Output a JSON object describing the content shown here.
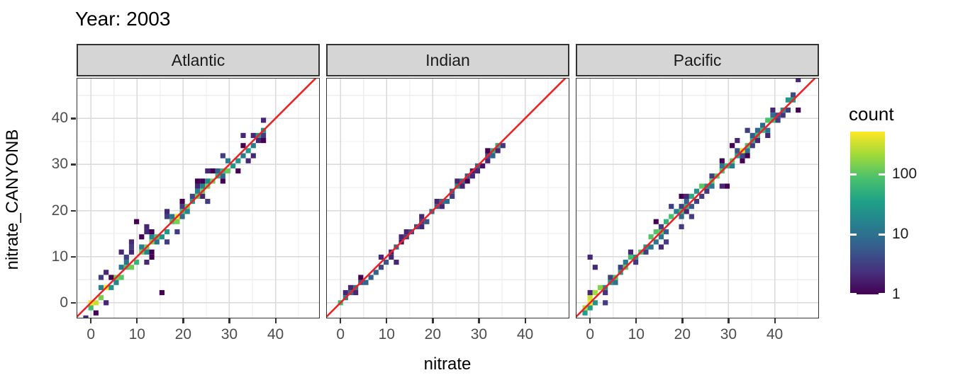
{
  "chart_data": {
    "type": "bin2d",
    "title": "Year: 2003",
    "xlabel": "nitrate",
    "ylabel": "nitrate_CANYONB",
    "x_ticks": [
      0,
      10,
      20,
      30,
      40
    ],
    "y_ticks": [
      0,
      10,
      20,
      30,
      40
    ],
    "minor_gridlines": [
      5,
      15,
      25,
      35,
      45
    ],
    "x_range": [
      -3.1,
      49.6
    ],
    "y_range": [
      -3.4,
      48.8
    ],
    "binwidth": 1.1,
    "grid": true,
    "reference_line": {
      "type": "identity y=x",
      "color": "#EC2227"
    },
    "legend": {
      "title": "count",
      "scale": "log10",
      "ticks": [
        100,
        10,
        1
      ],
      "log_top": 2.71,
      "position": "right",
      "palette": [
        "#440154",
        "#46327e",
        "#365c8d",
        "#277f8e",
        "#1fa187",
        "#4ac16d",
        "#a0da39",
        "#fde725"
      ]
    },
    "facets": [
      {
        "label": "Atlantic",
        "pattern": "dense 1:1 diagonal band 0-37 with moderate scatter, yellow hotspots near origin and ~19",
        "extent": [
          -0.5,
          37.4
        ],
        "core": [
          20,
          150
        ],
        "origin_boost": 3.5,
        "taper_above": 30,
        "taper": 0.25,
        "band_prob": 0.8,
        "scatter_prob": 0.8,
        "scatter_reach": 3,
        "seed": 7,
        "hotspots": [
          [
            0.1,
            0.1,
            480
          ],
          [
            18.5,
            18.9,
            430
          ]
        ],
        "outliers": [
          [
            15,
            2.2
          ],
          [
            10,
            17.5
          ],
          [
            11.6,
            16.4
          ],
          [
            8.4,
            13.4
          ],
          [
            7,
            11.2
          ],
          [
            25.4,
            21.6
          ],
          [
            13,
            10.4
          ],
          [
            3.2,
            6.1
          ]
        ]
      },
      {
        "label": "Indian",
        "pattern": "sparse thin 1:1 diagonal 0-35, mostly count 1-5, green hotspots near origin and ~33-34",
        "extent": [
          -0.5,
          35.4
        ],
        "core": [
          1,
          9
        ],
        "origin_boost": 2,
        "taper_above": 99,
        "taper": 1,
        "band_prob": 0.4,
        "scatter_prob": 0.35,
        "scatter_reach": 1,
        "seed": 11,
        "hotspots": [
          [
            0,
            0.3,
            70
          ],
          [
            33,
            33.4,
            55
          ],
          [
            34.2,
            34.4,
            45
          ],
          [
            25.6,
            25.8,
            20
          ]
        ],
        "outliers": [
          [
            12.5,
            8.6
          ],
          [
            17.8,
            19.2
          ]
        ]
      },
      {
        "label": "Pacific",
        "pattern": "dense 1:1 diagonal 0-45 with scatter, bulge above line near 20-22, isolated bins at (0,10)",
        "extent": [
          -0.6,
          45.3
        ],
        "core": [
          12,
          110
        ],
        "origin_boost": 4,
        "taper_above": 41,
        "taper": 0.35,
        "band_prob": 0.85,
        "scatter_prob": 0.75,
        "scatter_reach": 3,
        "seed": 13,
        "hotspots": [
          [
            0.2,
            0.2,
            470
          ],
          [
            32.7,
            32.7,
            430
          ]
        ],
        "outliers": [
          [
            0,
            9.9
          ],
          [
            0.8,
            7.9
          ],
          [
            28.3,
            25.1
          ],
          [
            29.9,
            25.2
          ],
          [
            6,
            4.6
          ],
          [
            20.3,
            22.6
          ],
          [
            21.4,
            23.1
          ],
          [
            20.9,
            22.1
          ],
          [
            34.5,
            31.4
          ],
          [
            33,
            30.6
          ]
        ]
      }
    ]
  },
  "layout_colors": {
    "strip_bg": "#d5d5d5",
    "strip_border": "#333333",
    "panel_border": "#333333",
    "grid_major": "#d9d9d9",
    "grid_minor": "#ededed",
    "tick_text": "#4d4d4d",
    "text": "#000000",
    "background": "#ffffff"
  }
}
